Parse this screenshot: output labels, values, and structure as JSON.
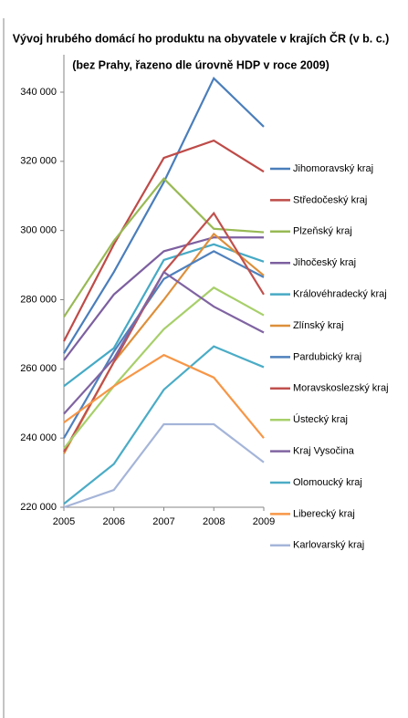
{
  "chart_data": {
    "type": "line",
    "title": "Vývoj hrubého domácí ho produktu na obyvatele v krajích ČR (v b. c.)",
    "subtitle": "(bez Prahy, řazeno dle úrovně HDP v roce 2009)",
    "categories": [
      "2005",
      "2006",
      "2007",
      "2008",
      "2009"
    ],
    "ylim": [
      220000,
      340000
    ],
    "yticks": [
      {
        "value": 220000,
        "label": "220 000"
      },
      {
        "value": 240000,
        "label": "240 000"
      },
      {
        "value": 260000,
        "label": "260 000"
      },
      {
        "value": 280000,
        "label": "280 000"
      },
      {
        "value": 300000,
        "label": "300 000"
      },
      {
        "value": 320000,
        "label": "320 000"
      },
      {
        "value": 340000,
        "label": "340 000"
      }
    ],
    "legend": "right",
    "series": [
      {
        "name": "Jihomoravský kraj",
        "color": "#4a7ebb",
        "values": [
          264500,
          288000,
          314000,
          344000,
          330000
        ]
      },
      {
        "name": "Středočeský kraj",
        "color": "#be4b48",
        "values": [
          268000,
          296000,
          321000,
          326000,
          317000
        ]
      },
      {
        "name": "Plzeňský kraj",
        "color": "#98b954",
        "values": [
          275000,
          297000,
          315000,
          300500,
          299500
        ]
      },
      {
        "name": "Jihočeský kraj",
        "color": "#7d60a0",
        "values": [
          262500,
          281500,
          294000,
          298000,
          298000
        ]
      },
      {
        "name": "Královéhradecký kraj",
        "color": "#46aac5",
        "values": [
          255000,
          266000,
          291500,
          296000,
          291000
        ]
      },
      {
        "name": "Zlínský kraj",
        "color": "#dd8f3a",
        "values": [
          235500,
          262000,
          280000,
          299000,
          287000
        ]
      },
      {
        "name": "Pardubický kraj",
        "color": "#4f81bd",
        "values": [
          240000,
          265000,
          286000,
          294000,
          286500
        ]
      },
      {
        "name": "Moravskoslezský kraj",
        "color": "#c0504d",
        "values": [
          236000,
          262000,
          288000,
          305000,
          281500
        ]
      },
      {
        "name": "Ústecký kraj",
        "color": "#a7cf6a",
        "values": [
          237000,
          255000,
          271500,
          283500,
          275500
        ]
      },
      {
        "name": "Kraj Vysočina",
        "color": "#8064a2",
        "values": [
          247000,
          263000,
          288000,
          278000,
          270500
        ]
      },
      {
        "name": "Olomoucký kraj",
        "color": "#4bacc6",
        "values": [
          221000,
          232500,
          254000,
          266500,
          260500
        ]
      },
      {
        "name": "Liberecký kraj",
        "color": "#f79646",
        "values": [
          244500,
          255000,
          264000,
          257500,
          240000
        ]
      },
      {
        "name": "Karlovarský kraj",
        "color": "#a5b5d9",
        "values": [
          220000,
          225000,
          244000,
          244000,
          233000
        ]
      }
    ]
  }
}
